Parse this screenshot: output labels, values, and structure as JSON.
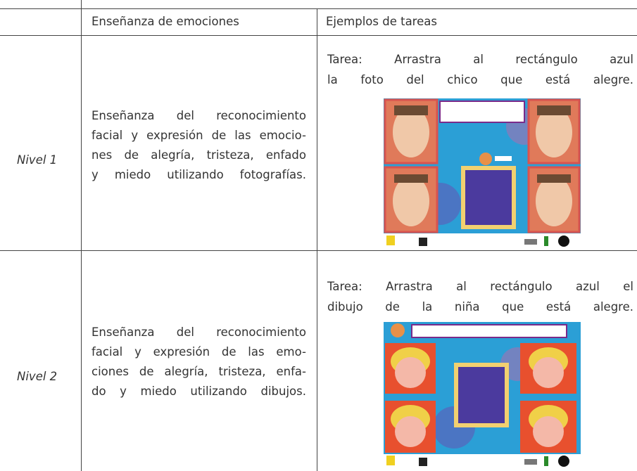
{
  "table": {
    "header": [
      "Enseñanza de emociones",
      "Ejemplos de tareas"
    ],
    "rows": [
      {
        "level": "Nivel 1",
        "description": [
          "Enseñanza del reconocimiento",
          "facial y expresión de las emocio-",
          "nes de alegría, tristeza, enfado",
          "y miedo utilizando fotografías."
        ],
        "task": [
          "Tarea: Arrastra al rectángulo azul",
          "la foto del chico que está alegre."
        ]
      },
      {
        "level": "Nivel 2",
        "description": [
          "Enseñanza del reconocimiento",
          "facial y expresión de las emo-",
          "ciones de alegría, tristeza, enfa-",
          "do y miedo utilizando dibujos."
        ],
        "task": [
          "Tarea: Arrastra al rectángulo azul el",
          "dibujo de la niña que está alegre."
        ]
      }
    ]
  }
}
